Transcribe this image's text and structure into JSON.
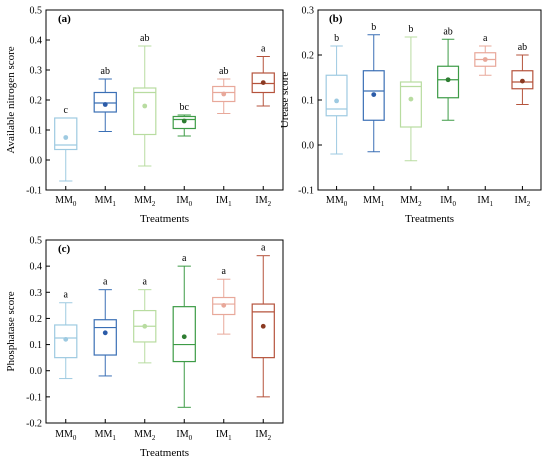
{
  "chart_data": [
    {
      "type": "box",
      "panel": "(a)",
      "ylabel": "Available nitrogen score",
      "xlabel": "Treatments",
      "ylim": [
        -0.1,
        0.5
      ],
      "yticks": [
        -0.1,
        0.0,
        0.1,
        0.2,
        0.3,
        0.4,
        0.5
      ],
      "categories": [
        {
          "base": "MM",
          "sub": "0"
        },
        {
          "base": "MM",
          "sub": "1"
        },
        {
          "base": "MM",
          "sub": "2"
        },
        {
          "base": "IM",
          "sub": "0"
        },
        {
          "base": "IM",
          "sub": "1"
        },
        {
          "base": "IM",
          "sub": "2"
        }
      ],
      "boxes": [
        {
          "min": -0.07,
          "q1": 0.035,
          "median": 0.05,
          "q3": 0.14,
          "max": 0.14,
          "mean": 0.075,
          "sig": "c",
          "color": "#9ecae1",
          "mean_color": "#9ecae1"
        },
        {
          "min": 0.095,
          "q1": 0.16,
          "median": 0.19,
          "q3": 0.225,
          "max": 0.27,
          "mean": 0.185,
          "sig": "ab",
          "color": "#3a6fb5",
          "mean_color": "#2b5ba8"
        },
        {
          "min": -0.02,
          "q1": 0.085,
          "median": 0.225,
          "q3": 0.24,
          "max": 0.38,
          "mean": 0.18,
          "sig": "ab",
          "color": "#b8dca0",
          "mean_color": "#b8dca0"
        },
        {
          "min": 0.08,
          "q1": 0.105,
          "median": 0.135,
          "q3": 0.145,
          "max": 0.15,
          "mean": 0.13,
          "sig": "bc",
          "color": "#3d9b46",
          "mean_color": "#2e7d32"
        },
        {
          "min": 0.155,
          "q1": 0.195,
          "median": 0.225,
          "q3": 0.245,
          "max": 0.27,
          "mean": 0.22,
          "sig": "ab",
          "color": "#e8a89a",
          "mean_color": "#e8a89a"
        },
        {
          "min": 0.18,
          "q1": 0.225,
          "median": 0.255,
          "q3": 0.29,
          "max": 0.345,
          "mean": 0.258,
          "sig": "a",
          "color": "#b5533c",
          "mean_color": "#8b3a22"
        }
      ]
    },
    {
      "type": "box",
      "panel": "(b)",
      "ylabel": "Urease score",
      "xlabel": "Treatments",
      "ylim": [
        -0.1,
        0.3
      ],
      "yticks": [
        -0.1,
        0.0,
        0.1,
        0.2,
        0.3
      ],
      "categories": [
        {
          "base": "MM",
          "sub": "0"
        },
        {
          "base": "MM",
          "sub": "1"
        },
        {
          "base": "MM",
          "sub": "2"
        },
        {
          "base": "IM",
          "sub": "0"
        },
        {
          "base": "IM",
          "sub": "1"
        },
        {
          "base": "IM",
          "sub": "2"
        }
      ],
      "boxes": [
        {
          "min": -0.02,
          "q1": 0.065,
          "median": 0.08,
          "q3": 0.155,
          "max": 0.22,
          "mean": 0.098,
          "sig": "b",
          "color": "#9ecae1",
          "mean_color": "#9ecae1"
        },
        {
          "min": -0.015,
          "q1": 0.055,
          "median": 0.12,
          "q3": 0.165,
          "max": 0.245,
          "mean": 0.112,
          "sig": "b",
          "color": "#3a6fb5",
          "mean_color": "#2b5ba8"
        },
        {
          "min": -0.035,
          "q1": 0.04,
          "median": 0.13,
          "q3": 0.14,
          "max": 0.24,
          "mean": 0.102,
          "sig": "b",
          "color": "#b8dca0",
          "mean_color": "#b8dca0"
        },
        {
          "min": 0.055,
          "q1": 0.105,
          "median": 0.145,
          "q3": 0.175,
          "max": 0.235,
          "mean": 0.145,
          "sig": "ab",
          "color": "#3d9b46",
          "mean_color": "#2e7d32"
        },
        {
          "min": 0.155,
          "q1": 0.175,
          "median": 0.19,
          "q3": 0.205,
          "max": 0.22,
          "mean": 0.19,
          "sig": "a",
          "color": "#e8a89a",
          "mean_color": "#e8a89a"
        },
        {
          "min": 0.09,
          "q1": 0.125,
          "median": 0.14,
          "q3": 0.165,
          "max": 0.2,
          "mean": 0.142,
          "sig": "ab",
          "color": "#b5533c",
          "mean_color": "#8b3a22"
        }
      ]
    },
    {
      "type": "box",
      "panel": "(c)",
      "ylabel": "Phosphatase score",
      "xlabel": "Treatments",
      "ylim": [
        -0.2,
        0.5
      ],
      "yticks": [
        -0.2,
        -0.1,
        0.0,
        0.1,
        0.2,
        0.3,
        0.4,
        0.5
      ],
      "categories": [
        {
          "base": "MM",
          "sub": "0"
        },
        {
          "base": "MM",
          "sub": "1"
        },
        {
          "base": "MM",
          "sub": "2"
        },
        {
          "base": "IM",
          "sub": "0"
        },
        {
          "base": "IM",
          "sub": "1"
        },
        {
          "base": "IM",
          "sub": "2"
        }
      ],
      "boxes": [
        {
          "min": -0.03,
          "q1": 0.05,
          "median": 0.125,
          "q3": 0.175,
          "max": 0.26,
          "mean": 0.12,
          "sig": "a",
          "color": "#9ecae1",
          "mean_color": "#9ecae1"
        },
        {
          "min": -0.02,
          "q1": 0.06,
          "median": 0.165,
          "q3": 0.195,
          "max": 0.31,
          "mean": 0.145,
          "sig": "a",
          "color": "#3a6fb5",
          "mean_color": "#2b5ba8"
        },
        {
          "min": 0.03,
          "q1": 0.11,
          "median": 0.17,
          "q3": 0.23,
          "max": 0.31,
          "mean": 0.17,
          "sig": "a",
          "color": "#b8dca0",
          "mean_color": "#b8dca0"
        },
        {
          "min": -0.14,
          "q1": 0.035,
          "median": 0.1,
          "q3": 0.245,
          "max": 0.4,
          "mean": 0.13,
          "sig": "a",
          "color": "#3d9b46",
          "mean_color": "#2e7d32"
        },
        {
          "min": 0.14,
          "q1": 0.215,
          "median": 0.255,
          "q3": 0.28,
          "max": 0.35,
          "mean": 0.25,
          "sig": "a",
          "color": "#e8a89a",
          "mean_color": "#e8a89a"
        },
        {
          "min": -0.1,
          "q1": 0.05,
          "median": 0.225,
          "q3": 0.255,
          "max": 0.44,
          "mean": 0.17,
          "sig": "a",
          "color": "#b5533c",
          "mean_color": "#8b3a22"
        }
      ]
    }
  ]
}
